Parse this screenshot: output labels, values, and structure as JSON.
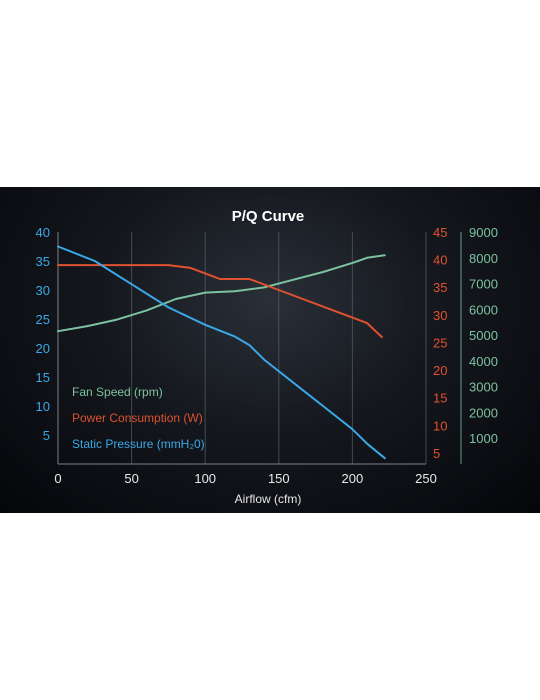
{
  "chart_data": {
    "type": "line",
    "title": "P/Q Curve",
    "xlabel": "Airflow (cfm)",
    "xlim": [
      0,
      250
    ],
    "x_ticks": [
      0,
      50,
      100,
      150,
      200,
      250
    ],
    "grid": true,
    "legend_position": "lower-left",
    "axes": [
      {
        "id": "pressure",
        "side": "left",
        "lim": [
          0,
          40
        ],
        "ticks": [
          5,
          10,
          15,
          20,
          25,
          30,
          35,
          40
        ],
        "color": "#3aa8e6"
      },
      {
        "id": "power",
        "side": "right",
        "lim": [
          3,
          45
        ],
        "ticks": [
          5,
          10,
          15,
          20,
          25,
          30,
          35,
          40,
          45
        ],
        "color": "#e0522f"
      },
      {
        "id": "speed",
        "side": "right-outer",
        "lim": [
          0,
          9000
        ],
        "ticks": [
          1000,
          2000,
          3000,
          4000,
          5000,
          6000,
          7000,
          8000,
          9000
        ],
        "color": "#7cc2a0"
      }
    ],
    "series": [
      {
        "name": "Fan Speed (rpm)",
        "axis": "speed",
        "color": "#7cc2a0",
        "x": [
          0,
          20,
          40,
          60,
          80,
          100,
          120,
          140,
          160,
          180,
          200,
          210,
          222
        ],
        "y": [
          5150,
          5350,
          5600,
          5950,
          6400,
          6650,
          6700,
          6850,
          7150,
          7450,
          7800,
          8000,
          8100
        ]
      },
      {
        "name": "Power Consumption (W)",
        "axis": "power",
        "color": "#e0522f",
        "x": [
          0,
          25,
          50,
          75,
          90,
          100,
          110,
          120,
          130,
          140,
          150,
          160,
          170,
          180,
          190,
          200,
          210,
          220
        ],
        "y": [
          39,
          39,
          39,
          39,
          38.5,
          37.5,
          36.5,
          36.5,
          36.5,
          35.5,
          34.5,
          33.5,
          32.5,
          31.5,
          30.5,
          29.5,
          28.5,
          26
        ]
      },
      {
        "name": "Static Pressure (mmH₂0)",
        "axis": "pressure",
        "color": "#3aa8e6",
        "x": [
          0,
          25,
          50,
          75,
          100,
          120,
          130,
          140,
          160,
          180,
          200,
          210,
          222
        ],
        "y": [
          37.5,
          35,
          31,
          27,
          24,
          22,
          20.5,
          18,
          14,
          10,
          6,
          3.5,
          1
        ]
      }
    ]
  }
}
